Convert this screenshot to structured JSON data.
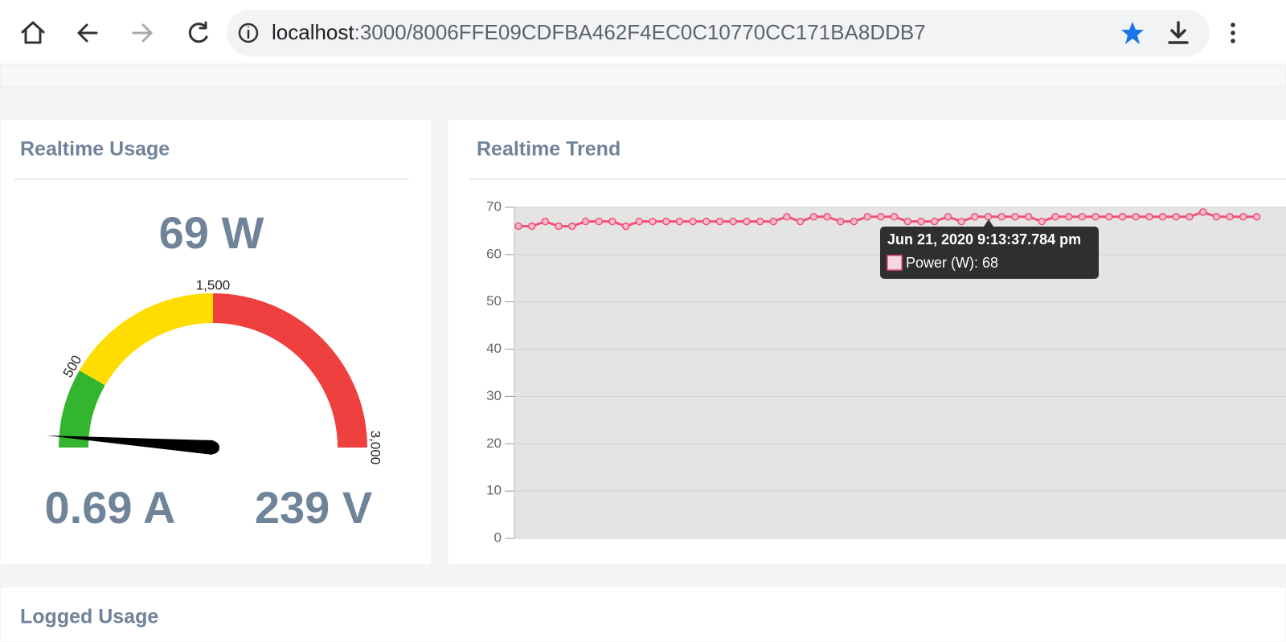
{
  "browser": {
    "url_host": "localhost",
    "url_path": ":3000/8006FFE09CDFBA462F4EC0C10770CC171BA8DDB7"
  },
  "usage": {
    "title": "Realtime Usage",
    "power": "69 W",
    "current": "0.69 A",
    "voltage": "239 V",
    "gauge": {
      "min": 0,
      "max": 3000,
      "value": 69,
      "bands": [
        {
          "from": 0,
          "to": 500,
          "color": "#33b52f"
        },
        {
          "from": 500,
          "to": 1500,
          "color": "#ffdd00"
        },
        {
          "from": 1500,
          "to": 3000,
          "color": "#ef4040"
        }
      ],
      "ticks": [
        500,
        {
          "value": 1500,
          "label": "1,500"
        },
        {
          "value": 3000,
          "label": "3,000"
        }
      ]
    }
  },
  "chart_data": {
    "type": "line",
    "title": "Realtime Trend",
    "series": [
      {
        "name": "Power (W)",
        "color": "#f0507a",
        "values": [
          66,
          66,
          67,
          66,
          66,
          67,
          67,
          67,
          66,
          67,
          67,
          67,
          67,
          67,
          67,
          67,
          67,
          67,
          67,
          67,
          68,
          67,
          68,
          68,
          67,
          67,
          68,
          68,
          68,
          67,
          67,
          67,
          68,
          67,
          68,
          68,
          68,
          68,
          68,
          67,
          68,
          68,
          68,
          68,
          68,
          68,
          68,
          68,
          68,
          68,
          68,
          69,
          68,
          68,
          68,
          68
        ]
      }
    ],
    "ylim": [
      0,
      70
    ],
    "yticks": [
      0,
      10,
      20,
      30,
      40,
      50,
      60,
      70
    ],
    "grid": true,
    "tooltip": {
      "title": "Jun 21, 2020 9:13:37.784 pm",
      "value": "68"
    }
  },
  "logged": {
    "title": "Logged Usage"
  }
}
